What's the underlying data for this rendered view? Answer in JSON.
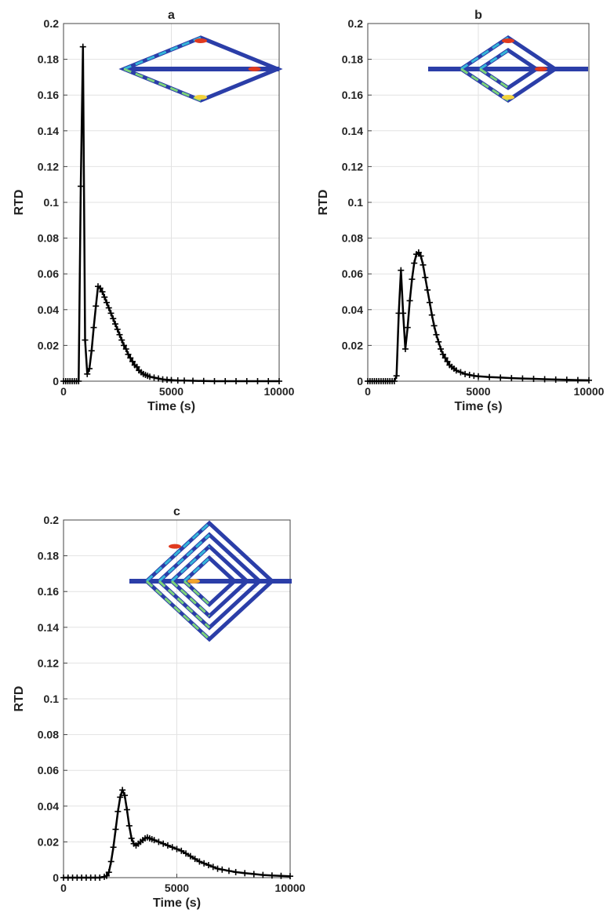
{
  "chart_data": [
    {
      "type": "line",
      "title": "a",
      "xlabel": "Time (s)",
      "ylabel": "RTD",
      "xlim": [
        0,
        10000
      ],
      "ylim": [
        0,
        0.2
      ],
      "xticks": [
        0,
        5000,
        10000
      ],
      "yticks": [
        0,
        0.02,
        0.04,
        0.06,
        0.08,
        0.1,
        0.12,
        0.14,
        0.16,
        0.18,
        0.2
      ],
      "grid": true,
      "inset": "serpentine-diamond-channel-1-loop",
      "series": [
        {
          "color": "#000000",
          "marker": "+",
          "points": [
            [
              0,
              0
            ],
            [
              100,
              0
            ],
            [
              200,
              0
            ],
            [
              300,
              0
            ],
            [
              400,
              0
            ],
            [
              500,
              0
            ],
            [
              600,
              0
            ],
            [
              700,
              0
            ],
            [
              800,
              0.109
            ],
            [
              900,
              0.187
            ],
            [
              1000,
              0.023
            ],
            [
              1100,
              0.004
            ],
            [
              1200,
              0.007
            ],
            [
              1300,
              0.017
            ],
            [
              1400,
              0.03
            ],
            [
              1500,
              0.042
            ],
            [
              1600,
              0.053
            ],
            [
              1700,
              0.052
            ],
            [
              1800,
              0.05
            ],
            [
              1900,
              0.047
            ],
            [
              2000,
              0.044
            ],
            [
              2100,
              0.041
            ],
            [
              2200,
              0.038
            ],
            [
              2300,
              0.035
            ],
            [
              2400,
              0.032
            ],
            [
              2500,
              0.029
            ],
            [
              2600,
              0.026
            ],
            [
              2700,
              0.023
            ],
            [
              2800,
              0.02
            ],
            [
              2900,
              0.018
            ],
            [
              3000,
              0.015
            ],
            [
              3100,
              0.013
            ],
            [
              3200,
              0.011
            ],
            [
              3300,
              0.009
            ],
            [
              3400,
              0.008
            ],
            [
              3500,
              0.006
            ],
            [
              3600,
              0.005
            ],
            [
              3700,
              0.004
            ],
            [
              3800,
              0.0035
            ],
            [
              3900,
              0.003
            ],
            [
              4000,
              0.0025
            ],
            [
              4200,
              0.002
            ],
            [
              4400,
              0.0015
            ],
            [
              4600,
              0.001
            ],
            [
              4800,
              0.0008
            ],
            [
              5000,
              0.0006
            ],
            [
              5300,
              0.0004
            ],
            [
              5600,
              0.0003
            ],
            [
              6000,
              0.0002
            ],
            [
              6500,
              0.0001
            ],
            [
              7000,
              0
            ],
            [
              7500,
              0
            ],
            [
              8000,
              0
            ],
            [
              8500,
              0
            ],
            [
              9000,
              0
            ],
            [
              9500,
              0
            ],
            [
              10000,
              0
            ]
          ]
        }
      ]
    },
    {
      "type": "line",
      "title": "b",
      "xlabel": "Time (s)",
      "ylabel": "RTD",
      "xlim": [
        0,
        10000
      ],
      "ylim": [
        0,
        0.2
      ],
      "xticks": [
        0,
        5000,
        10000
      ],
      "yticks": [
        0,
        0.02,
        0.04,
        0.06,
        0.08,
        0.1,
        0.12,
        0.14,
        0.16,
        0.18,
        0.2
      ],
      "grid": true,
      "inset": "serpentine-diamond-channel-2-loops",
      "series": [
        {
          "color": "#000000",
          "marker": "+",
          "points": [
            [
              0,
              0
            ],
            [
              100,
              0
            ],
            [
              200,
              0
            ],
            [
              300,
              0
            ],
            [
              400,
              0
            ],
            [
              500,
              0
            ],
            [
              600,
              0
            ],
            [
              700,
              0
            ],
            [
              800,
              0
            ],
            [
              900,
              0
            ],
            [
              1000,
              0
            ],
            [
              1100,
              0
            ],
            [
              1200,
              0
            ],
            [
              1300,
              0.003
            ],
            [
              1400,
              0.038
            ],
            [
              1500,
              0.062
            ],
            [
              1600,
              0.038
            ],
            [
              1700,
              0.018
            ],
            [
              1800,
              0.03
            ],
            [
              1900,
              0.045
            ],
            [
              2000,
              0.057
            ],
            [
              2100,
              0.066
            ],
            [
              2200,
              0.071
            ],
            [
              2300,
              0.072
            ],
            [
              2400,
              0.07
            ],
            [
              2500,
              0.065
            ],
            [
              2600,
              0.058
            ],
            [
              2700,
              0.051
            ],
            [
              2800,
              0.044
            ],
            [
              2900,
              0.037
            ],
            [
              3000,
              0.031
            ],
            [
              3100,
              0.026
            ],
            [
              3200,
              0.022
            ],
            [
              3300,
              0.018
            ],
            [
              3400,
              0.015
            ],
            [
              3500,
              0.013
            ],
            [
              3600,
              0.011
            ],
            [
              3700,
              0.009
            ],
            [
              3800,
              0.008
            ],
            [
              3900,
              0.007
            ],
            [
              4000,
              0.006
            ],
            [
              4200,
              0.005
            ],
            [
              4400,
              0.004
            ],
            [
              4600,
              0.0035
            ],
            [
              4800,
              0.003
            ],
            [
              5000,
              0.0027
            ],
            [
              5500,
              0.0023
            ],
            [
              6000,
              0.002
            ],
            [
              6500,
              0.0017
            ],
            [
              7000,
              0.0015
            ],
            [
              7500,
              0.0013
            ],
            [
              8000,
              0.0011
            ],
            [
              8500,
              0.0009
            ],
            [
              9000,
              0.0008
            ],
            [
              9500,
              0.0006
            ],
            [
              10000,
              0.0005
            ]
          ]
        }
      ]
    },
    {
      "type": "line",
      "title": "c",
      "xlabel": "Time (s)",
      "ylabel": "RTD",
      "xlim": [
        0,
        10000
      ],
      "ylim": [
        0,
        0.2
      ],
      "xticks": [
        0,
        5000,
        10000
      ],
      "yticks": [
        0,
        0.02,
        0.04,
        0.06,
        0.08,
        0.1,
        0.12,
        0.14,
        0.16,
        0.18,
        0.2
      ],
      "grid": true,
      "inset": "serpentine-diamond-channel-4-loops",
      "series": [
        {
          "color": "#000000",
          "marker": "+",
          "points": [
            [
              0,
              0
            ],
            [
              200,
              0
            ],
            [
              400,
              0
            ],
            [
              600,
              0
            ],
            [
              800,
              0
            ],
            [
              1000,
              0
            ],
            [
              1200,
              0
            ],
            [
              1400,
              0
            ],
            [
              1600,
              0
            ],
            [
              1800,
              0.0005
            ],
            [
              1900,
              0.001
            ],
            [
              2000,
              0.003
            ],
            [
              2100,
              0.009
            ],
            [
              2200,
              0.017
            ],
            [
              2300,
              0.027
            ],
            [
              2400,
              0.037
            ],
            [
              2500,
              0.045
            ],
            [
              2600,
              0.049
            ],
            [
              2700,
              0.046
            ],
            [
              2800,
              0.038
            ],
            [
              2900,
              0.029
            ],
            [
              3000,
              0.022
            ],
            [
              3100,
              0.019
            ],
            [
              3200,
              0.018
            ],
            [
              3300,
              0.019
            ],
            [
              3400,
              0.02
            ],
            [
              3500,
              0.021
            ],
            [
              3600,
              0.022
            ],
            [
              3700,
              0.0225
            ],
            [
              3800,
              0.022
            ],
            [
              3900,
              0.0215
            ],
            [
              4000,
              0.021
            ],
            [
              4200,
              0.02
            ],
            [
              4400,
              0.019
            ],
            [
              4600,
              0.018
            ],
            [
              4800,
              0.017
            ],
            [
              5000,
              0.016
            ],
            [
              5200,
              0.015
            ],
            [
              5400,
              0.0135
            ],
            [
              5600,
              0.012
            ],
            [
              5800,
              0.0105
            ],
            [
              6000,
              0.009
            ],
            [
              6200,
              0.008
            ],
            [
              6400,
              0.007
            ],
            [
              6600,
              0.006
            ],
            [
              6800,
              0.005
            ],
            [
              7000,
              0.0045
            ],
            [
              7300,
              0.0038
            ],
            [
              7600,
              0.0031
            ],
            [
              8000,
              0.0025
            ],
            [
              8400,
              0.002
            ],
            [
              8800,
              0.0015
            ],
            [
              9200,
              0.0012
            ],
            [
              9600,
              0.001
            ],
            [
              10000,
              0.0008
            ]
          ]
        }
      ]
    }
  ]
}
